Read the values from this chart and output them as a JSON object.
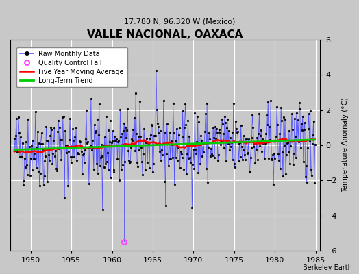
{
  "title": "VALLE NACIONAL, OAXACA",
  "subtitle": "17.780 N, 96.320 W (Mexico)",
  "ylabel": "Temperature Anomaly (°C)",
  "xlabel_credit": "Berkeley Earth",
  "xlim": [
    1947.5,
    1985.5
  ],
  "ylim": [
    -6,
    6
  ],
  "yticks": [
    -6,
    -4,
    -2,
    0,
    2,
    4,
    6
  ],
  "xticks": [
    1950,
    1955,
    1960,
    1965,
    1970,
    1975,
    1980,
    1985
  ],
  "bg_color": "#c8c8c8",
  "plot_bg_color": "#c8c8c8",
  "line_color": "#5555ff",
  "marker_color": "#000000",
  "moving_avg_color": "#ff0000",
  "trend_color": "#00cc00",
  "qc_fail_color": "#ff44ff",
  "grid_color": "#ffffff",
  "seed": 42,
  "n_years": 37,
  "start_year": 1948,
  "noise_std": 1.1,
  "n_spikes": 15
}
